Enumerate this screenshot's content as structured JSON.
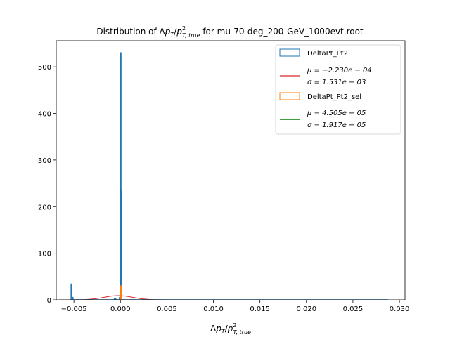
{
  "chart_data": {
    "type": "histogram",
    "title": {
      "prefix": "Distribution of ",
      "delta": "Δ",
      "p": "p",
      "sub_T": "T",
      "slash": "/",
      "p2": "p",
      "sup2": "2",
      "sub_true": "T, true",
      "suffix": " for mu-70-deg_200-GeV_1000evt.root"
    },
    "xlabel": {
      "delta": "Δ",
      "p": "p",
      "sub_T": "T",
      "slash": "/",
      "p2": "p",
      "sup2": "2",
      "sub_true": "T, true"
    },
    "xlim": [
      -0.0069,
      0.0306
    ],
    "ylim": [
      0,
      556
    ],
    "xticks": [
      -0.005,
      0.0,
      0.005,
      0.01,
      0.015,
      0.02,
      0.025,
      0.03
    ],
    "xtick_labels": [
      "−0.005",
      "0.000",
      "0.005",
      "0.010",
      "0.015",
      "0.020",
      "0.025",
      "0.030"
    ],
    "yticks": [
      0,
      100,
      200,
      300,
      400,
      500
    ],
    "ytick_labels": [
      "0",
      "100",
      "200",
      "300",
      "400",
      "500"
    ],
    "legend_position": "top-right",
    "series": [
      {
        "name": "DeltaPt_Pt2",
        "kind": "step-histogram",
        "color": "#1f77b4",
        "points": [
          [
            -0.0054,
            0
          ],
          [
            -0.0053,
            34
          ],
          [
            -0.00525,
            5
          ],
          [
            -0.0051,
            0
          ],
          [
            -0.0007,
            0
          ],
          [
            -0.00065,
            3
          ],
          [
            -0.0005,
            0
          ],
          [
            -0.00015,
            0
          ],
          [
            -0.0001,
            5
          ],
          [
            0.0,
            530
          ],
          [
            6e-05,
            235
          ],
          [
            0.0001,
            20
          ],
          [
            0.00015,
            0
          ],
          [
            0.0288,
            0
          ]
        ]
      },
      {
        "name": "DeltaPt_Pt2_sel",
        "kind": "step-histogram",
        "color": "#ff7f0e",
        "points": [
          [
            -5e-05,
            0
          ],
          [
            -2e-05,
            20
          ],
          [
            0.0,
            15
          ],
          [
            4e-05,
            30
          ],
          [
            8e-05,
            12
          ],
          [
            0.0001,
            0
          ]
        ]
      }
    ],
    "fits": [
      {
        "label_mu": "μ = −2.230e − 04",
        "label_sigma": "σ = 1.531e − 03",
        "mu": -0.000223,
        "sigma": 0.001531,
        "peak": 9,
        "color": "#d62728"
      },
      {
        "label_mu": "μ = 4.505e − 05",
        "label_sigma": "σ = 1.917e − 05",
        "mu": 4.505e-05,
        "sigma": 1.917e-05,
        "peak": 20,
        "color": "#008000"
      }
    ]
  }
}
